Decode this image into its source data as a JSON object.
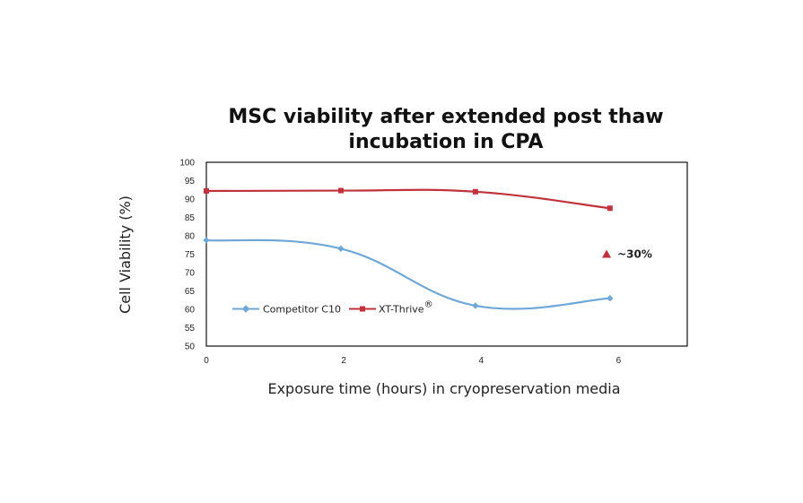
{
  "chart_data": {
    "type": "line",
    "title_lines": [
      "MSC viability after extended post thaw",
      "incubation in CPA"
    ],
    "xlabel": "Exposure time (hours) in cryopreservation media",
    "ylabel": "Cell Viability (%)",
    "xlim": [
      0,
      7
    ],
    "ylim": [
      50,
      100
    ],
    "x_ticks": [
      "0",
      "2",
      "4",
      "6"
    ],
    "y_ticks": [
      "50",
      "55",
      "60",
      "65",
      "70",
      "75",
      "80",
      "85",
      "90",
      "95",
      "100"
    ],
    "grid": false,
    "legend_position": "lower-left",
    "series": [
      {
        "name": "Competitor C10",
        "color": "#6fa8d6",
        "marker": "diamond",
        "x": [
          0,
          2,
          4,
          6
        ],
        "y": [
          78.8,
          76.5,
          61,
          63
        ]
      },
      {
        "name": "XT-Thrive",
        "name_superscript": "®",
        "color": "#c0323c",
        "marker": "square",
        "x": [
          0,
          2,
          4,
          6
        ],
        "y": [
          92.2,
          92.3,
          92,
          87.5
        ]
      }
    ],
    "annotation": {
      "text": "~30%",
      "marker": "triangle",
      "color": "#c0323c",
      "x": 5.95,
      "y": 75
    }
  }
}
